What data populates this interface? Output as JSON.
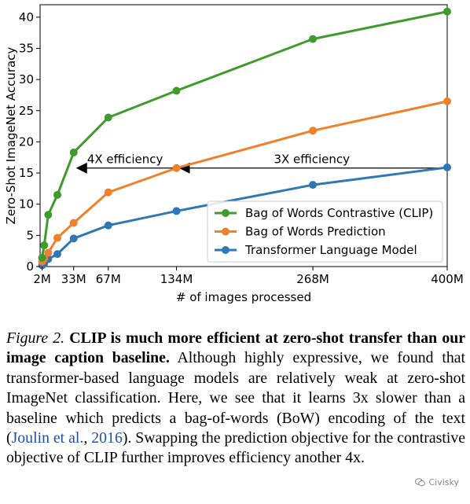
{
  "chart_data": {
    "type": "line",
    "xlabel": "# of images processed",
    "ylabel": "Zero-Shot ImageNet Accuracy",
    "xlim": [
      0,
      400
    ],
    "ylim": [
      0,
      42
    ],
    "x_ticks": [
      {
        "value": 2,
        "label": "2M"
      },
      {
        "value": 33,
        "label": "33M"
      },
      {
        "value": 67,
        "label": "67M"
      },
      {
        "value": 134,
        "label": "134M"
      },
      {
        "value": 268,
        "label": "268M"
      },
      {
        "value": 400,
        "label": "400M"
      }
    ],
    "y_ticks": [
      0,
      5,
      10,
      15,
      20,
      25,
      30,
      35,
      40
    ],
    "grid": false,
    "legend_position": "lower-right",
    "series": [
      {
        "name": "Bag of Words Contrastive (CLIP)",
        "color": "#3f9b2c",
        "x": [
          2,
          4,
          8,
          17,
          33,
          67,
          134,
          268,
          400
        ],
        "y": [
          1.4,
          3.4,
          8.3,
          11.5,
          18.3,
          23.9,
          28.2,
          36.5,
          40.9
        ]
      },
      {
        "name": "Bag of Words Prediction",
        "color": "#f0802a",
        "x": [
          2,
          4,
          8,
          17,
          33,
          67,
          134,
          268,
          400
        ],
        "y": [
          0.8,
          1.3,
          2.2,
          4.6,
          7.0,
          11.9,
          15.8,
          21.8,
          26.5
        ]
      },
      {
        "name": "Transformer Language Model",
        "color": "#2f78b5",
        "x": [
          2,
          4,
          8,
          17,
          33,
          67,
          134,
          268,
          400
        ],
        "y": [
          0.2,
          0.5,
          1.2,
          2.0,
          4.5,
          6.6,
          8.9,
          13.1,
          15.9
        ]
      }
    ],
    "annotations": [
      {
        "text": "4X efficiency",
        "x_from": 134,
        "x_to": 33,
        "y": 15.8
      },
      {
        "text": "3X efficiency",
        "x_from": 400,
        "x_to": 134,
        "y": 15.8
      }
    ]
  },
  "caption": {
    "figure_label": "Figure 2.",
    "bold_text": "CLIP is much more efficient at zero-shot transfer than our image caption baseline.",
    "body_before_cite": "Although highly expressive, we found that transformer-based language models are relatively weak at zero-shot ImageNet classification. Here, we see that it learns 3x slower than a baseline which predicts a bag-of-words (BoW) encoding of the text (",
    "cite_text": "Joulin et al.",
    "cite_sep": ", ",
    "cite_year": "2016",
    "body_after_cite": "). Swapping the prediction objective for the contrastive objective of CLIP further improves efficiency another 4x."
  },
  "watermark": {
    "text": "Civisky",
    "icon": "wechat-icon"
  }
}
